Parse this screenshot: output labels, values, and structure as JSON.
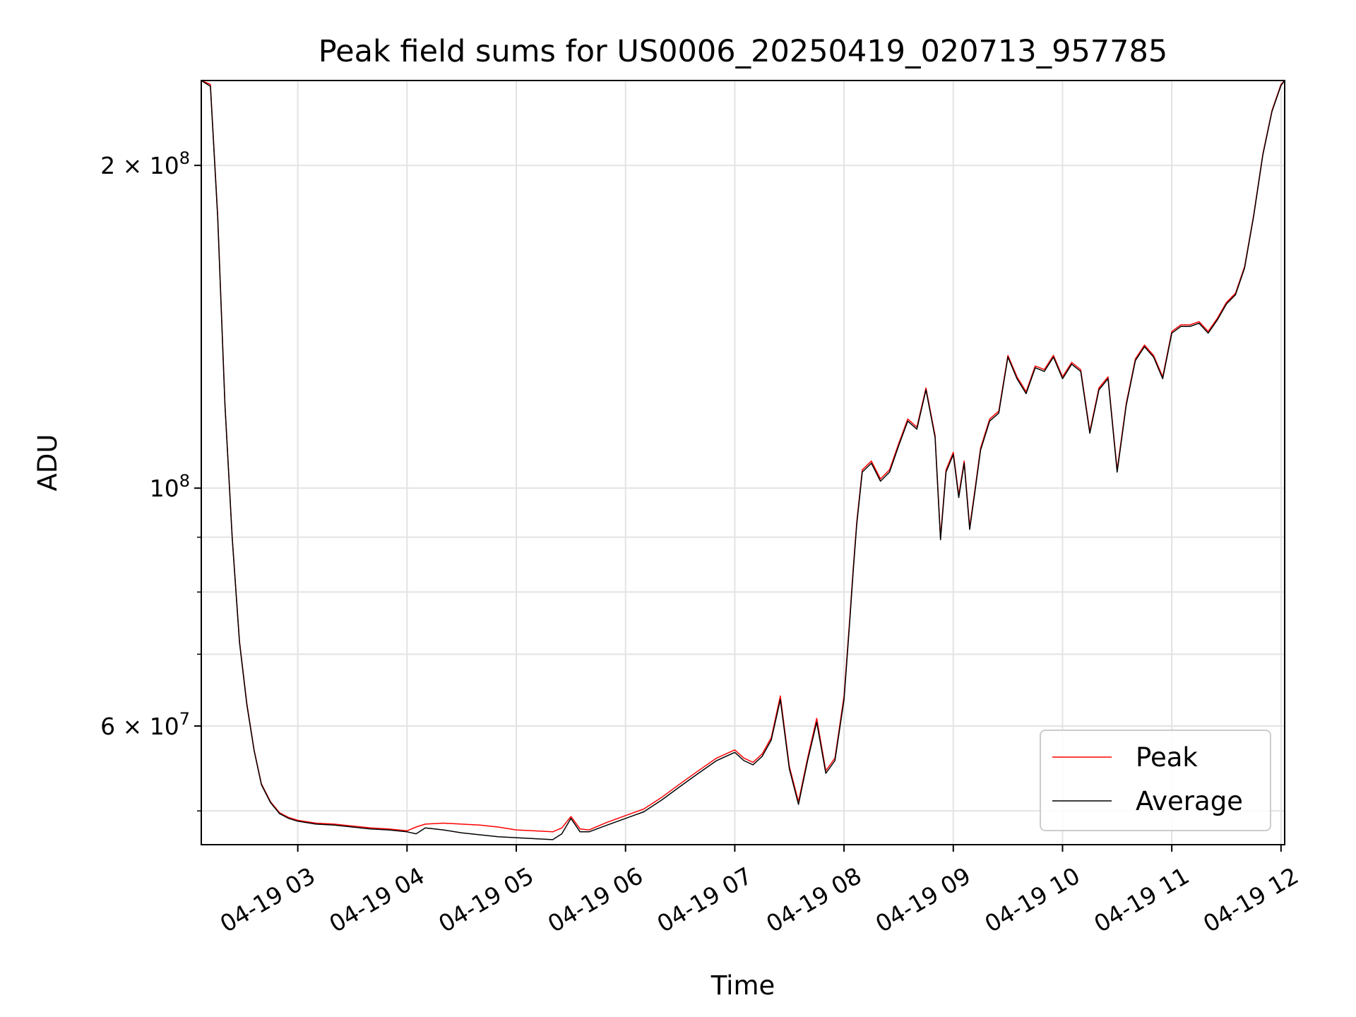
{
  "chart_data": {
    "type": "line",
    "title": "Peak field sums for US0006_20250419_020713_957785",
    "xlabel": "Time",
    "ylabel": "ADU",
    "yscale": "log",
    "xlim": [
      "2025-04-19 02:07",
      "2025-04-19 12:02"
    ],
    "ylim": [
      46500000,
      240000000
    ],
    "grid": true,
    "legend_position": "lower right",
    "colors": {
      "Peak": "#ff0000",
      "Average": "#000000"
    },
    "x_ticks": [
      {
        "time": "2025-04-19 03:00",
        "label": "04-19 03"
      },
      {
        "time": "2025-04-19 04:00",
        "label": "04-19 04"
      },
      {
        "time": "2025-04-19 05:00",
        "label": "04-19 05"
      },
      {
        "time": "2025-04-19 06:00",
        "label": "04-19 06"
      },
      {
        "time": "2025-04-19 07:00",
        "label": "04-19 07"
      },
      {
        "time": "2025-04-19 08:00",
        "label": "04-19 08"
      },
      {
        "time": "2025-04-19 09:00",
        "label": "04-19 09"
      },
      {
        "time": "2025-04-19 10:00",
        "label": "04-19 10"
      },
      {
        "time": "2025-04-19 11:00",
        "label": "04-19 11"
      },
      {
        "time": "2025-04-19 12:00",
        "label": "04-19 12"
      }
    ],
    "y_major_ticks": [
      {
        "value": 60000000,
        "base": "6 × 10",
        "exp": "7"
      },
      {
        "value": 100000000,
        "base": "10",
        "exp": "8"
      },
      {
        "value": 200000000,
        "base": "2 × 10",
        "exp": "8"
      }
    ],
    "y_minor_ticks": [
      50000000,
      70000000,
      80000000,
      90000000
    ],
    "x": [
      "02:07",
      "02:12",
      "02:16",
      "02:20",
      "02:24",
      "02:28",
      "02:32",
      "02:36",
      "02:40",
      "02:45",
      "02:50",
      "02:55",
      "03:00",
      "03:10",
      "03:20",
      "03:30",
      "03:40",
      "03:50",
      "04:00",
      "04:05",
      "04:10",
      "04:20",
      "04:30",
      "04:40",
      "04:50",
      "05:00",
      "05:10",
      "05:20",
      "05:25",
      "05:30",
      "05:35",
      "05:40",
      "05:50",
      "06:00",
      "06:10",
      "06:20",
      "06:30",
      "06:40",
      "06:50",
      "07:00",
      "07:05",
      "07:10",
      "07:15",
      "07:20",
      "07:25",
      "07:30",
      "07:35",
      "07:40",
      "07:45",
      "07:50",
      "07:55",
      "08:00",
      "08:03",
      "08:05",
      "08:07",
      "08:10",
      "08:15",
      "08:20",
      "08:25",
      "08:30",
      "08:35",
      "08:40",
      "08:45",
      "08:50",
      "08:53",
      "08:56",
      "09:00",
      "09:03",
      "09:06",
      "09:09",
      "09:12",
      "09:15",
      "09:20",
      "09:25",
      "09:30",
      "09:35",
      "09:40",
      "09:45",
      "09:50",
      "09:55",
      "10:00",
      "10:05",
      "10:10",
      "10:15",
      "10:20",
      "10:25",
      "10:30",
      "10:35",
      "10:40",
      "10:45",
      "10:50",
      "10:55",
      "11:00",
      "11:05",
      "11:10",
      "11:15",
      "11:20",
      "11:25",
      "11:30",
      "11:35",
      "11:40",
      "11:45",
      "11:50",
      "11:55",
      "12:00",
      "12:02"
    ],
    "series": [
      {
        "name": "Peak",
        "values": [
          240000000,
          238000000,
          180000000,
          120000000,
          90000000,
          72000000,
          63000000,
          57000000,
          53000000,
          51000000,
          49800000,
          49300000,
          49000000,
          48700000,
          48600000,
          48400000,
          48200000,
          48100000,
          47900000,
          48300000,
          48600000,
          48700000,
          48600000,
          48500000,
          48300000,
          48000000,
          47900000,
          47800000,
          48200000,
          49400000,
          48100000,
          48000000,
          48800000,
          49500000,
          50200000,
          51500000,
          53000000,
          54500000,
          56000000,
          57000000,
          56000000,
          55500000,
          56500000,
          58500000,
          64000000,
          55000000,
          51000000,
          56000000,
          61000000,
          54500000,
          56000000,
          64000000,
          75000000,
          84000000,
          93000000,
          104000000,
          106000000,
          102000000,
          104000000,
          110000000,
          116000000,
          114000000,
          124000000,
          112000000,
          90000000,
          104000000,
          108000000,
          98500000,
          106000000,
          92000000,
          100000000,
          109000000,
          116000000,
          118000000,
          133000000,
          127000000,
          123000000,
          130000000,
          129000000,
          133000000,
          127000000,
          131000000,
          129000000,
          113000000,
          124000000,
          127000000,
          104000000,
          120000000,
          132000000,
          136000000,
          133000000,
          127000000,
          140000000,
          142000000,
          142000000,
          143000000,
          140000000,
          144000000,
          149000000,
          152000000,
          161000000,
          180000000,
          205000000,
          225000000,
          238000000,
          240000000
        ]
      },
      {
        "name": "Average",
        "values": [
          240000000,
          237000000,
          179000000,
          119500000,
          89800000,
          71800000,
          62800000,
          56900000,
          52900000,
          50900000,
          49700000,
          49200000,
          48900000,
          48600000,
          48500000,
          48300000,
          48100000,
          48000000,
          47800000,
          47600000,
          48200000,
          48000000,
          47700000,
          47500000,
          47300000,
          47200000,
          47100000,
          47000000,
          47600000,
          49200000,
          47800000,
          47800000,
          48500000,
          49200000,
          49900000,
          51200000,
          52700000,
          54200000,
          55700000,
          56700000,
          55700000,
          55200000,
          56200000,
          58200000,
          63500000,
          54700000,
          50700000,
          55700000,
          60500000,
          54200000,
          55700000,
          63500000,
          74500000,
          83500000,
          92500000,
          103500000,
          105500000,
          101500000,
          103500000,
          109500000,
          115500000,
          113500000,
          123500000,
          111500000,
          89500000,
          103500000,
          107500000,
          98000000,
          105500000,
          91500000,
          99500000,
          108500000,
          115500000,
          117500000,
          132500000,
          126500000,
          122500000,
          129500000,
          128500000,
          132500000,
          126500000,
          130500000,
          128500000,
          112500000,
          123500000,
          126500000,
          103500000,
          119500000,
          131500000,
          135500000,
          132500000,
          126500000,
          139500000,
          141500000,
          141500000,
          142500000,
          139500000,
          143500000,
          148500000,
          151500000,
          160500000,
          179500000,
          204500000,
          224500000,
          237500000,
          240000000
        ]
      }
    ]
  }
}
